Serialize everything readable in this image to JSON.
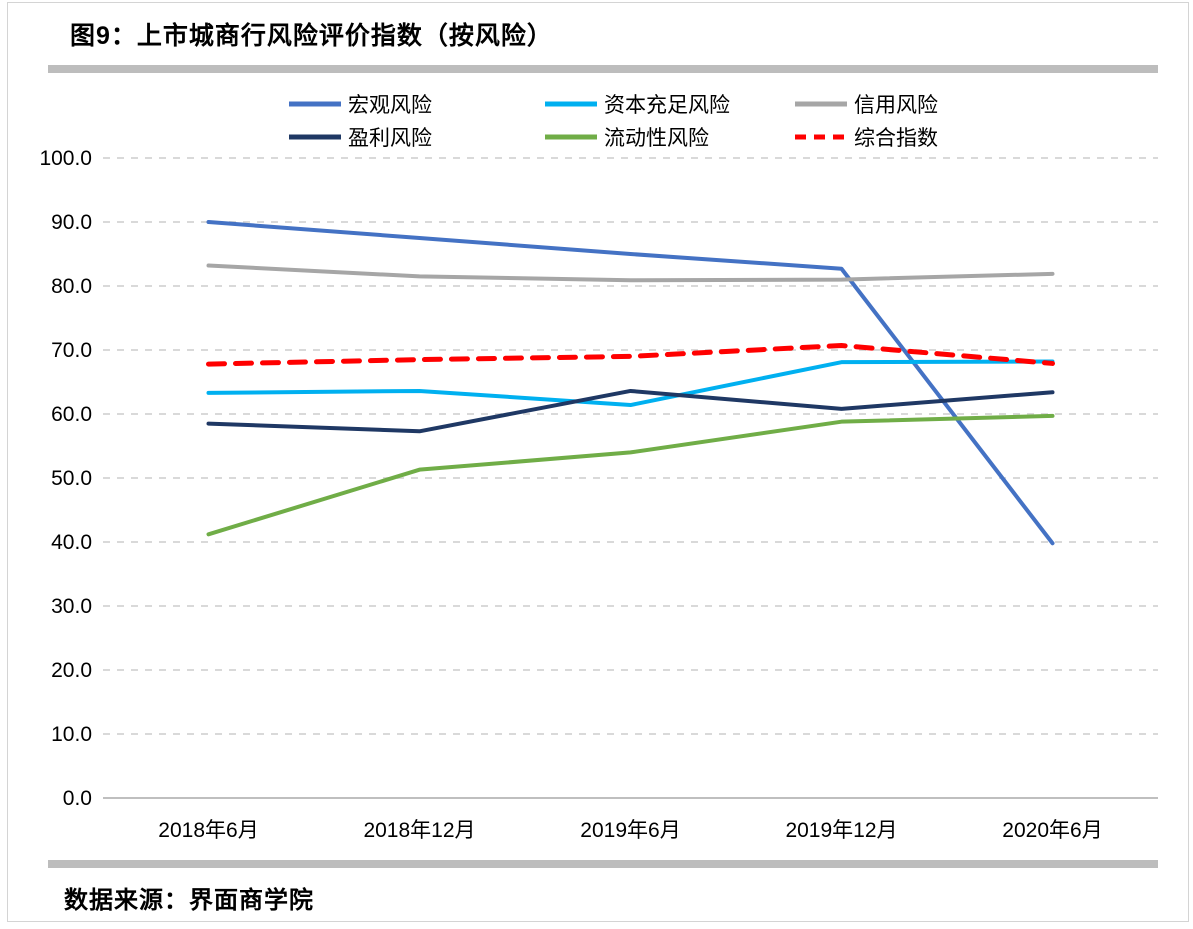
{
  "header": {
    "title": "图9：上市城商行风险评价指数（按风险）"
  },
  "footer": {
    "source": "数据来源：界面商学院"
  },
  "colors": {
    "gridline": "#D9D9D9",
    "axis_line": "#BFBFBF",
    "divider_bar": "#BDBDBD",
    "page_border": "#D4D4D4",
    "text": "#000000"
  },
  "chart_data": {
    "type": "line",
    "title": "图9：上市城商行风险评价指数（按风险）",
    "categories": [
      "2018年6月",
      "2018年12月",
      "2019年6月",
      "2019年12月",
      "2020年6月"
    ],
    "series": [
      {
        "name": "宏观风险",
        "color": "#4472C4",
        "dash": false,
        "values": [
          90.0,
          87.5,
          85.0,
          82.7,
          39.8
        ]
      },
      {
        "name": "资本充足风险",
        "color": "#00B0F0",
        "dash": false,
        "values": [
          63.3,
          63.6,
          61.4,
          68.1,
          68.2
        ]
      },
      {
        "name": "信用风险",
        "color": "#A6A6A6",
        "dash": false,
        "values": [
          83.2,
          81.5,
          80.9,
          81.0,
          81.9
        ]
      },
      {
        "name": "盈利风险",
        "color": "#1F3864",
        "dash": false,
        "values": [
          58.5,
          57.3,
          63.6,
          60.8,
          63.4
        ]
      },
      {
        "name": "流动性风险",
        "color": "#70AD47",
        "dash": false,
        "values": [
          41.2,
          51.3,
          54.0,
          58.8,
          59.7
        ]
      },
      {
        "name": "综合指数",
        "color": "#FF0000",
        "dash": true,
        "values": [
          67.8,
          68.5,
          69.0,
          70.7,
          67.9
        ]
      }
    ],
    "xlabel": "",
    "ylabel": "",
    "ylim": [
      0,
      100
    ],
    "ytick_step": 10,
    "ytick_labels": [
      "0.0",
      "10.0",
      "20.0",
      "30.0",
      "40.0",
      "50.0",
      "60.0",
      "70.0",
      "80.0",
      "90.0",
      "100.0"
    ],
    "grid": true,
    "gridline_style": "dashed",
    "legend_position": "top",
    "legend_rows": 2,
    "legend_columns": 3
  }
}
